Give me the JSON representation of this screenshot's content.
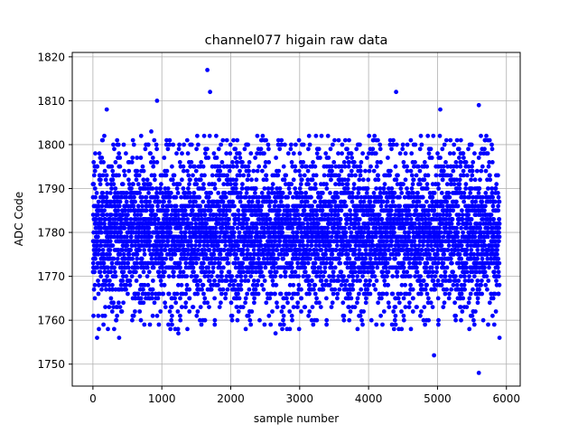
{
  "chart_data": {
    "type": "scatter",
    "title": "channel077 higain raw data",
    "xlabel": "sample number",
    "ylabel": "ADC Code",
    "xlim": [
      -300,
      6200
    ],
    "ylim": [
      1745,
      1821
    ],
    "xticks": [
      0,
      1000,
      2000,
      3000,
      4000,
      5000,
      6000
    ],
    "xtick_labels": [
      "0",
      "1000",
      "2000",
      "3000",
      "4000",
      "5000",
      "6000"
    ],
    "yticks": [
      1750,
      1760,
      1770,
      1780,
      1790,
      1800,
      1810,
      1820
    ],
    "ytick_labels": [
      "1750",
      "1760",
      "1770",
      "1780",
      "1790",
      "1800",
      "1810",
      "1820"
    ],
    "grid": true,
    "marker_color": "#0000ff",
    "series": [
      {
        "n_samples": 5900,
        "x_range": [
          0,
          5900
        ],
        "baseline": 1780,
        "dense_band": [
          1768,
          1792
        ],
        "notable_points": [
          {
            "x": 60,
            "y": 1756
          },
          {
            "x": 200,
            "y": 1808
          },
          {
            "x": 380,
            "y": 1756
          },
          {
            "x": 930,
            "y": 1810
          },
          {
            "x": 1660,
            "y": 1817
          },
          {
            "x": 1700,
            "y": 1812
          },
          {
            "x": 1240,
            "y": 1757
          },
          {
            "x": 2650,
            "y": 1757
          },
          {
            "x": 4400,
            "y": 1812
          },
          {
            "x": 4950,
            "y": 1752
          },
          {
            "x": 5040,
            "y": 1808
          },
          {
            "x": 5600,
            "y": 1748
          },
          {
            "x": 5600,
            "y": 1809
          },
          {
            "x": 5900,
            "y": 1756
          }
        ]
      }
    ]
  }
}
